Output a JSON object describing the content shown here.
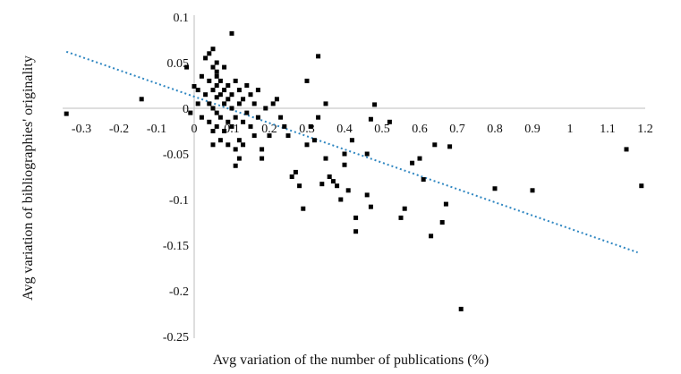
{
  "chart_data": {
    "type": "scatter",
    "title": "",
    "xlabel": "Avg variation of the number of publications (%)",
    "ylabel": "Avg variation of bibliographies' originality",
    "xlim": [
      -0.35,
      1.2
    ],
    "ylim": [
      -0.25,
      0.1
    ],
    "x_ticks": [
      "-0.3",
      "-0.2",
      "-0.1",
      "0",
      "0.1",
      "0.2",
      "0.3",
      "0.4",
      "0.5",
      "0.6",
      "0.7",
      "0.8",
      "0.9",
      "1",
      "1.1",
      "1.2"
    ],
    "y_ticks": [
      "0.1",
      "0.05",
      "0",
      "-0.05",
      "-0.1",
      "-0.15",
      "-0.2",
      "-0.25"
    ],
    "x_tick_values": [
      -0.3,
      -0.2,
      -0.1,
      0,
      0.1,
      0.2,
      0.3,
      0.4,
      0.5,
      0.6,
      0.7,
      0.8,
      0.9,
      1,
      1.1,
      1.2
    ],
    "y_tick_values": [
      0.1,
      0.05,
      0,
      -0.05,
      -0.1,
      -0.15,
      -0.2,
      -0.25
    ],
    "grid": false,
    "marker_color": "#000000",
    "trendline": {
      "style": "dotted",
      "color": "#2e86c1",
      "x": [
        -0.34,
        1.18
      ],
      "y": [
        0.062,
        -0.158
      ]
    },
    "series": [
      {
        "points": [
          [
            -0.34,
            -0.006
          ],
          [
            -0.14,
            0.01
          ],
          [
            -0.02,
            0.045
          ],
          [
            -0.01,
            -0.005
          ],
          [
            0.0,
            0.024
          ],
          [
            0.01,
            0.005
          ],
          [
            0.01,
            0.02
          ],
          [
            0.02,
            0.035
          ],
          [
            0.02,
            -0.01
          ],
          [
            0.03,
            0.015
          ],
          [
            0.03,
            0.055
          ],
          [
            0.04,
            0.03
          ],
          [
            0.04,
            0.005
          ],
          [
            0.04,
            -0.015
          ],
          [
            0.04,
            0.06
          ],
          [
            0.05,
            0.065
          ],
          [
            0.05,
            0.045
          ],
          [
            0.05,
            0.02
          ],
          [
            0.05,
            0.0
          ],
          [
            0.05,
            -0.025
          ],
          [
            0.05,
            -0.04
          ],
          [
            0.06,
            0.05
          ],
          [
            0.06,
            0.035
          ],
          [
            0.06,
            0.025
          ],
          [
            0.06,
            0.012
          ],
          [
            0.06,
            -0.005
          ],
          [
            0.06,
            -0.02
          ],
          [
            0.06,
            0.04
          ],
          [
            0.07,
            0.03
          ],
          [
            0.07,
            0.015
          ],
          [
            0.07,
            -0.01
          ],
          [
            0.07,
            -0.035
          ],
          [
            0.08,
            0.045
          ],
          [
            0.08,
            0.02
          ],
          [
            0.08,
            0.005
          ],
          [
            0.08,
            -0.025
          ],
          [
            0.09,
            0.025
          ],
          [
            0.09,
            0.01
          ],
          [
            0.09,
            -0.015
          ],
          [
            0.09,
            -0.04
          ],
          [
            0.1,
            0.082
          ],
          [
            0.1,
            0.015
          ],
          [
            0.1,
            0.0
          ],
          [
            0.1,
            -0.02
          ],
          [
            0.11,
            0.03
          ],
          [
            0.11,
            -0.01
          ],
          [
            0.11,
            -0.045
          ],
          [
            0.11,
            -0.063
          ],
          [
            0.12,
            0.02
          ],
          [
            0.12,
            0.005
          ],
          [
            0.12,
            -0.035
          ],
          [
            0.12,
            -0.055
          ],
          [
            0.13,
            0.01
          ],
          [
            0.13,
            -0.015
          ],
          [
            0.13,
            -0.04
          ],
          [
            0.14,
            0.025
          ],
          [
            0.14,
            -0.005
          ],
          [
            0.15,
            0.015
          ],
          [
            0.15,
            -0.02
          ],
          [
            0.16,
            0.005
          ],
          [
            0.16,
            -0.03
          ],
          [
            0.17,
            0.02
          ],
          [
            0.17,
            -0.01
          ],
          [
            0.18,
            -0.045
          ],
          [
            0.18,
            -0.055
          ],
          [
            0.19,
            0.0
          ],
          [
            0.2,
            -0.03
          ],
          [
            0.21,
            0.005
          ],
          [
            0.22,
            0.01
          ],
          [
            0.23,
            -0.01
          ],
          [
            0.24,
            -0.02
          ],
          [
            0.25,
            -0.03
          ],
          [
            0.26,
            -0.075
          ],
          [
            0.27,
            -0.07
          ],
          [
            0.28,
            -0.085
          ],
          [
            0.29,
            -0.11
          ],
          [
            0.3,
            -0.04
          ],
          [
            0.3,
            0.03
          ],
          [
            0.31,
            -0.02
          ],
          [
            0.32,
            -0.035
          ],
          [
            0.33,
            -0.01
          ],
          [
            0.33,
            0.057
          ],
          [
            0.34,
            -0.083
          ],
          [
            0.35,
            -0.055
          ],
          [
            0.35,
            0.005
          ],
          [
            0.36,
            -0.075
          ],
          [
            0.37,
            -0.08
          ],
          [
            0.38,
            -0.085
          ],
          [
            0.39,
            -0.1
          ],
          [
            0.4,
            -0.05
          ],
          [
            0.4,
            -0.062
          ],
          [
            0.41,
            -0.09
          ],
          [
            0.42,
            -0.035
          ],
          [
            0.43,
            -0.12
          ],
          [
            0.43,
            -0.135
          ],
          [
            0.46,
            -0.095
          ],
          [
            0.46,
            -0.05
          ],
          [
            0.47,
            -0.012
          ],
          [
            0.47,
            -0.108
          ],
          [
            0.48,
            0.004
          ],
          [
            0.52,
            -0.015
          ],
          [
            0.55,
            -0.12
          ],
          [
            0.56,
            -0.11
          ],
          [
            0.58,
            -0.06
          ],
          [
            0.6,
            -0.055
          ],
          [
            0.61,
            -0.078
          ],
          [
            0.63,
            -0.14
          ],
          [
            0.64,
            -0.04
          ],
          [
            0.66,
            -0.125
          ],
          [
            0.67,
            -0.105
          ],
          [
            0.68,
            -0.042
          ],
          [
            0.71,
            -0.22
          ],
          [
            0.8,
            -0.088
          ],
          [
            0.9,
            -0.09
          ],
          [
            1.15,
            -0.045
          ],
          [
            1.19,
            -0.085
          ]
        ]
      }
    ]
  }
}
